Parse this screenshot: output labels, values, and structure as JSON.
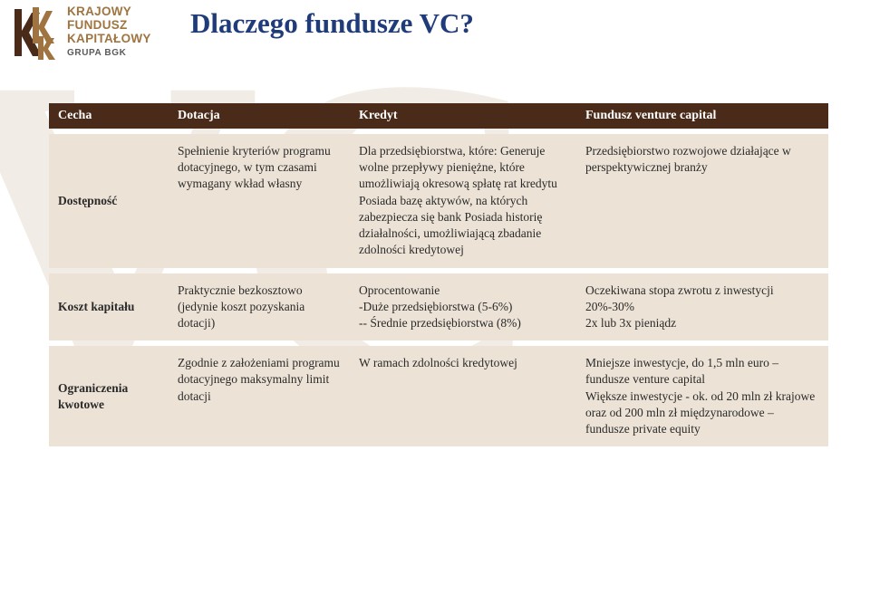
{
  "watermark": "VC",
  "logo": {
    "line1": "KRAJOWY",
    "line2": "FUNDUSZ",
    "line3": "KAPITAŁOWY",
    "sub": "GRUPA BGK"
  },
  "title": "Dlaczego fundusze VC?",
  "colors": {
    "header_bg": "#4a2a18",
    "header_fg": "#ffffff",
    "row_bg": "#ece3d6",
    "title_fg": "#1f3b7a",
    "watermark_fg": "#f1ece6",
    "logo_main": "#a07440",
    "logo_sub": "#5a5a5a"
  },
  "table": {
    "header": [
      "Cecha",
      "Dotacja",
      "Kredyt",
      "Fundusz venture capital"
    ],
    "rows": [
      {
        "label": "Dostępność",
        "dotacja": "Spełnienie kryteriów programu dotacyjnego, w tym czasami wymagany wkład własny",
        "kredyt": "Dla przedsiębiorstwa, które: Generuje wolne przepływy pieniężne, które umożliwiają okresową spłatę rat kredytu Posiada bazę aktywów, na których zabezpiecza się bank Posiada historię działalności, umożliwiającą zbadanie zdolności kredytowej",
        "fundusz": "Przedsiębiorstwo rozwojowe działające w perspektywicznej branży"
      },
      {
        "label": "Koszt kapitału",
        "dotacja": "Praktycznie bezkosztowo (jedynie koszt pozyskania dotacji)",
        "kredyt": "Oprocentowanie\n-Duże przedsiębiorstwa (5-6%)\n-- Średnie przedsiębiorstwa (8%)",
        "fundusz": "Oczekiwana stopa zwrotu z inwestycji\n20%-30%\n2x lub 3x pieniądz"
      },
      {
        "label": "Ograniczenia kwotowe",
        "dotacja": "Zgodnie z założeniami programu dotacyjnego maksymalny limit dotacji",
        "kredyt": "W ramach zdolności kredytowej",
        "fundusz": "Mniejsze inwestycje, do 1,5 mln euro – fundusze venture capital\nWiększe inwestycje - ok. od 20 mln zł krajowe oraz od 200 mln zł międzynarodowe – fundusze private equity"
      }
    ]
  }
}
